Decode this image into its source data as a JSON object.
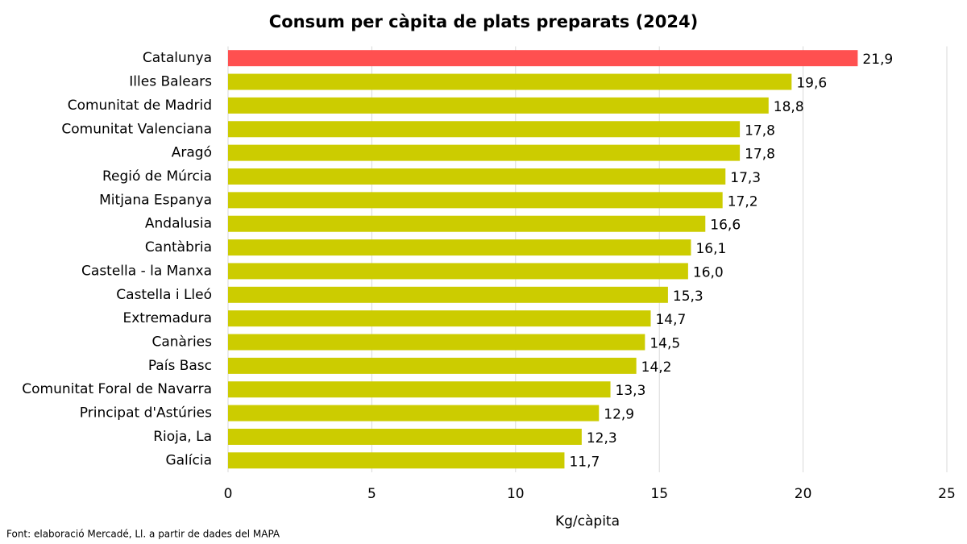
{
  "chart_data": {
    "type": "bar",
    "orientation": "horizontal",
    "title": "Consum per càpita de plats preparats (2024)",
    "x_label": "Kg/càpita",
    "source": "Font: elaboració Mercadé, Ll. a partir de dades del MAPA",
    "categories": [
      "Catalunya",
      "Illes Balears",
      "Comunitat de Madrid",
      "Comunitat Valenciana",
      "Aragó",
      "Regió de Múrcia",
      "Mitjana Espanya",
      "Andalusia",
      "Cantàbria",
      "Castella - la Manxa",
      "Castella i Lleó",
      "Extremadura",
      "Canàries",
      "País Basc",
      "Comunitat Foral de Navarra",
      "Principat d'Astúries",
      "Rioja, La",
      "Galícia"
    ],
    "values": [
      21.9,
      19.6,
      18.8,
      17.8,
      17.8,
      17.3,
      17.2,
      16.6,
      16.1,
      16.0,
      15.3,
      14.7,
      14.5,
      14.2,
      13.3,
      12.9,
      12.3,
      11.7
    ],
    "value_labels": [
      "21,9",
      "19,6",
      "18,8",
      "17,8",
      "17,8",
      "17,3",
      "17,2",
      "16,6",
      "16,1",
      "16,0",
      "15,3",
      "14,7",
      "14,5",
      "14,2",
      "13,3",
      "12,9",
      "12,3",
      "11,7"
    ],
    "colors": [
      "#ff5050",
      "#cccc00",
      "#cccc00",
      "#cccc00",
      "#cccc00",
      "#cccc00",
      "#cccc00",
      "#cccc00",
      "#cccc00",
      "#cccc00",
      "#cccc00",
      "#cccc00",
      "#cccc00",
      "#cccc00",
      "#cccc00",
      "#cccc00",
      "#cccc00",
      "#cccc00"
    ],
    "xlim": [
      0,
      25
    ],
    "xticks": [
      0,
      5,
      10,
      15,
      20,
      25
    ],
    "grid": true
  }
}
